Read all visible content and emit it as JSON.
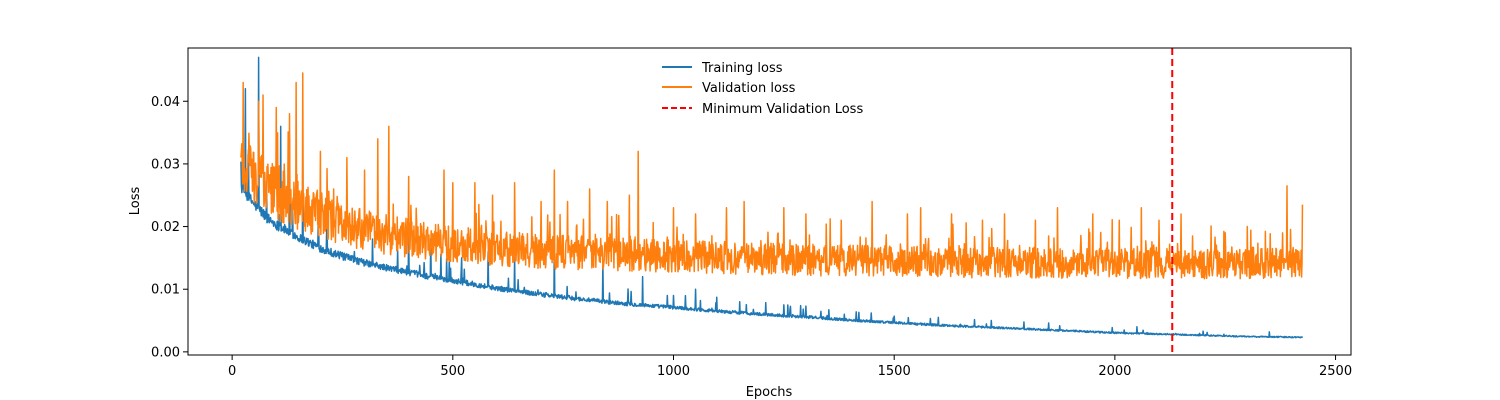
{
  "chart_data": {
    "type": "line",
    "title": "",
    "xlabel": "Epochs",
    "ylabel": "Loss",
    "xlim": [
      -100,
      2535
    ],
    "ylim": [
      -0.0005,
      0.0485
    ],
    "xticks": [
      0,
      500,
      1000,
      1500,
      2000,
      2500
    ],
    "yticks": [
      0.0,
      0.01,
      0.02,
      0.03,
      0.04
    ],
    "xtick_labels": [
      "0",
      "500",
      "1000",
      "1500",
      "2000",
      "2500"
    ],
    "ytick_labels": [
      "0.00",
      "0.01",
      "0.02",
      "0.03",
      "0.04"
    ],
    "grid": false,
    "legend_position": "upper center",
    "series": [
      {
        "name": "Training loss",
        "color": "#1f77b4",
        "style": "solid",
        "x": [
          20,
          40,
          60,
          80,
          100,
          125,
          150,
          200,
          250,
          300,
          350,
          400,
          450,
          500,
          600,
          700,
          800,
          900,
          1000,
          1100,
          1200,
          1300,
          1400,
          1500,
          1600,
          1700,
          1800,
          1900,
          2000,
          2100,
          2200,
          2300,
          2425
        ],
        "y": [
          0.026,
          0.024,
          0.0225,
          0.021,
          0.02,
          0.019,
          0.018,
          0.0163,
          0.015,
          0.014,
          0.0132,
          0.0125,
          0.0118,
          0.0112,
          0.01,
          0.009,
          0.0082,
          0.0075,
          0.007,
          0.0064,
          0.0059,
          0.0055,
          0.005,
          0.0046,
          0.0042,
          0.0039,
          0.0036,
          0.0033,
          0.003,
          0.0028,
          0.0026,
          0.0024,
          0.0023
        ],
        "spikes": [
          [
            60,
            0.047
          ],
          [
            30,
            0.042
          ],
          [
            110,
            0.036
          ],
          [
            130,
            0.034
          ],
          [
            160,
            0.031
          ],
          [
            400,
            0.02
          ],
          [
            450,
            0.018
          ],
          [
            520,
            0.015
          ],
          [
            580,
            0.016
          ],
          [
            640,
            0.015
          ],
          [
            730,
            0.017
          ],
          [
            840,
            0.014
          ],
          [
            930,
            0.012
          ],
          [
            1000,
            0.009
          ],
          [
            1050,
            0.01
          ],
          [
            1150,
            0.008
          ],
          [
            1250,
            0.0075
          ],
          [
            1300,
            0.0073
          ],
          [
            1420,
            0.0063
          ],
          [
            1500,
            0.0057
          ],
          [
            1600,
            0.0055
          ],
          [
            1720,
            0.005
          ],
          [
            1850,
            0.0046
          ],
          [
            2050,
            0.004
          ],
          [
            2200,
            0.0033
          ],
          [
            2350,
            0.0032
          ]
        ]
      },
      {
        "name": "Validation loss",
        "color": "#ff7f0e",
        "style": "solid",
        "x": [
          20,
          40,
          60,
          80,
          100,
          150,
          200,
          250,
          300,
          400,
          500,
          600,
          700,
          800,
          900,
          1000,
          1100,
          1200,
          1300,
          1400,
          1500,
          1600,
          1700,
          1800,
          1900,
          2000,
          2100,
          2200,
          2300,
          2425
        ],
        "y": [
          0.03,
          0.028,
          0.027,
          0.026,
          0.025,
          0.023,
          0.0215,
          0.02,
          0.019,
          0.0178,
          0.0168,
          0.0162,
          0.0158,
          0.0155,
          0.0152,
          0.015,
          0.0148,
          0.0146,
          0.0144,
          0.0143,
          0.0142,
          0.0141,
          0.014,
          0.014,
          0.0139,
          0.0139,
          0.0138,
          0.0138,
          0.0138,
          0.014
        ],
        "spikes": [
          [
            25,
            0.043
          ],
          [
            60,
            0.04
          ],
          [
            70,
            0.041
          ],
          [
            100,
            0.039
          ],
          [
            130,
            0.038
          ],
          [
            145,
            0.043
          ],
          [
            160,
            0.0445
          ],
          [
            200,
            0.032
          ],
          [
            260,
            0.031
          ],
          [
            300,
            0.029
          ],
          [
            330,
            0.034
          ],
          [
            355,
            0.036
          ],
          [
            400,
            0.028
          ],
          [
            480,
            0.029
          ],
          [
            500,
            0.027
          ],
          [
            550,
            0.027
          ],
          [
            590,
            0.025
          ],
          [
            640,
            0.027
          ],
          [
            700,
            0.024
          ],
          [
            730,
            0.029
          ],
          [
            760,
            0.024
          ],
          [
            810,
            0.026
          ],
          [
            850,
            0.024
          ],
          [
            900,
            0.025
          ],
          [
            920,
            0.032
          ],
          [
            1000,
            0.023
          ],
          [
            1050,
            0.022
          ],
          [
            1120,
            0.023
          ],
          [
            1160,
            0.024
          ],
          [
            1250,
            0.023
          ],
          [
            1300,
            0.022
          ],
          [
            1380,
            0.021
          ],
          [
            1450,
            0.024
          ],
          [
            1530,
            0.022
          ],
          [
            1560,
            0.023
          ],
          [
            1630,
            0.022
          ],
          [
            1700,
            0.021
          ],
          [
            1750,
            0.022
          ],
          [
            1820,
            0.021
          ],
          [
            1870,
            0.023
          ],
          [
            1950,
            0.022
          ],
          [
            2010,
            0.021
          ],
          [
            2060,
            0.023
          ],
          [
            2100,
            0.021
          ],
          [
            2150,
            0.022
          ],
          [
            2250,
            0.019
          ],
          [
            2300,
            0.02
          ],
          [
            2380,
            0.019
          ],
          [
            2390,
            0.0265
          ],
          [
            2425,
            0.0235
          ]
        ]
      },
      {
        "name": "Minimum Validation Loss",
        "color": "#ff0000",
        "style": "dashed",
        "vline_x": 2130
      }
    ]
  }
}
